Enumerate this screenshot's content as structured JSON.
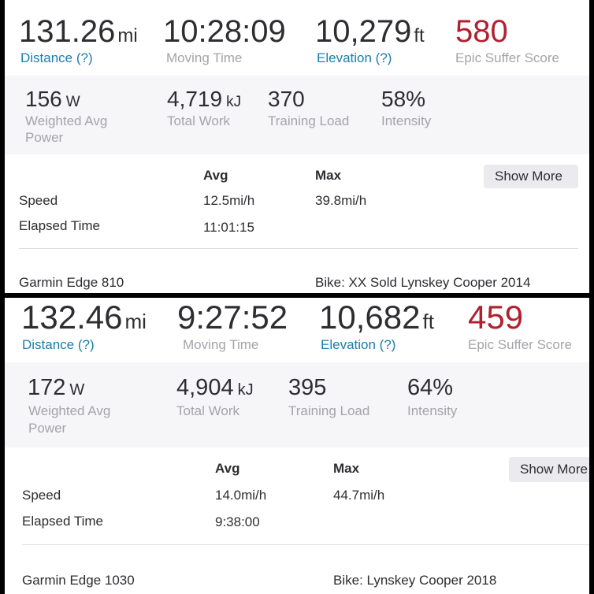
{
  "top": {
    "distance": {
      "value": "131.26",
      "unit": "mi",
      "label": "Distance (?)"
    },
    "moving_time": {
      "value": "10:28:09",
      "label": "Moving Time"
    },
    "elevation": {
      "value": "10,279",
      "unit": "ft",
      "label": "Elevation (?)"
    },
    "suffer": {
      "value": "580",
      "label": "Epic Suffer Score"
    },
    "power": {
      "value": "156",
      "unit": "W",
      "label_line1": "Weighted Avg",
      "label_line2": "Power"
    },
    "work": {
      "value": "4,719",
      "unit": "kJ",
      "label": "Total Work"
    },
    "training_load": {
      "value": "370",
      "label": "Training Load"
    },
    "intensity": {
      "value": "58%",
      "label": "Intensity"
    },
    "table": {
      "avg_header": "Avg",
      "max_header": "Max",
      "speed_label": "Speed",
      "speed_avg": "12.5mi/h",
      "speed_max": "39.8mi/h",
      "elapsed_label": "Elapsed Time",
      "elapsed_avg": "11:01:15"
    },
    "show_more": "Show More",
    "device": "Garmin Edge 810",
    "bike": "Bike: XX Sold Lynskey Cooper 2014"
  },
  "bottom": {
    "distance": {
      "value": "132.46",
      "unit": "mi",
      "label": "Distance (?)"
    },
    "moving_time": {
      "value": "9:27:52",
      "label": "Moving Time"
    },
    "elevation": {
      "value": "10,682",
      "unit": "ft",
      "label": "Elevation (?)"
    },
    "suffer": {
      "value": "459",
      "label": "Epic Suffer Score"
    },
    "power": {
      "value": "172",
      "unit": "W",
      "label_line1": "Weighted Avg",
      "label_line2": "Power"
    },
    "work": {
      "value": "4,904",
      "unit": "kJ",
      "label": "Total Work"
    },
    "training_load": {
      "value": "395",
      "label": "Training Load"
    },
    "intensity": {
      "value": "64%",
      "label": "Intensity"
    },
    "table": {
      "avg_header": "Avg",
      "max_header": "Max",
      "speed_label": "Speed",
      "speed_avg": "14.0mi/h",
      "speed_max": "44.7mi/h",
      "elapsed_label": "Elapsed Time",
      "elapsed_avg": "9:38:00"
    },
    "show_more": "Show More",
    "device": "Garmin Edge 1030",
    "bike": "Bike: Lynskey Cooper 2018"
  },
  "colors": {
    "accent_blue": "#1a7fa8",
    "suffer_red": "#b1202f"
  }
}
